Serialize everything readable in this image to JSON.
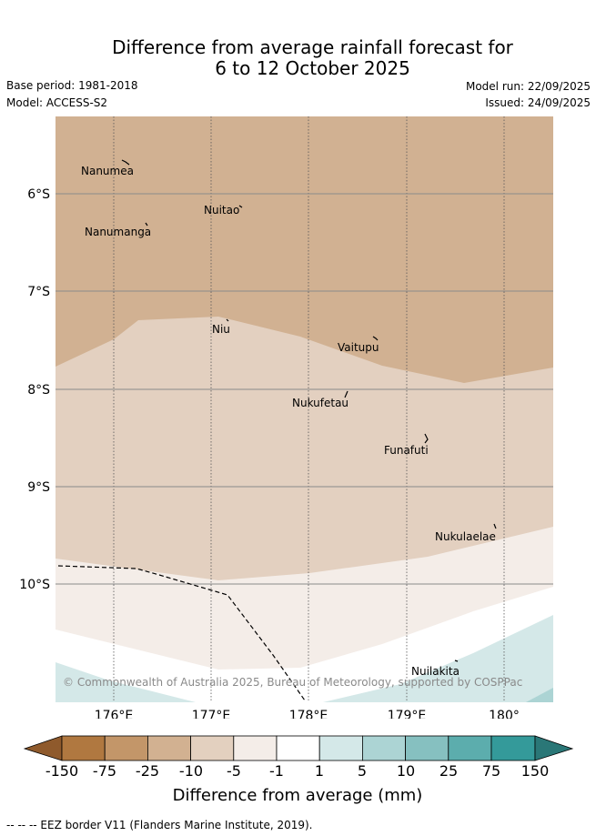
{
  "header": {
    "title_line1": "Difference from average rainfall forecast for",
    "title_line2": "6 to 12 October 2025",
    "base_period": "Base period: 1981-2018",
    "model": "Model: ACCESS-S2",
    "model_run": "Model run: 22/09/2025",
    "issued": "Issued: 24/09/2025"
  },
  "map": {
    "lat_labels": [
      "6°S",
      "7°S",
      "8°S",
      "9°S",
      "10°S"
    ],
    "lon_labels": [
      "176°E",
      "177°E",
      "178°E",
      "179°E",
      "180°"
    ],
    "places": [
      "Nanumea",
      "Nuitao",
      "Nanumanga",
      "Niu",
      "Vaitupu",
      "Nukufetau",
      "Funafuti",
      "Nukulaelae",
      "Nuilakita"
    ],
    "copyright": "© Commonwealth of Australia 2025, Bureau of Meteorology, supported by COSPPac"
  },
  "colorbar": {
    "ticks": [
      "-150",
      "-75",
      "-25",
      "-10",
      "-5",
      "-1",
      "1",
      "5",
      "10",
      "25",
      "75",
      "150"
    ],
    "colors": [
      "#8f5a2c",
      "#b07840",
      "#c39669",
      "#d2b191",
      "#e3d0bf",
      "#f4ede8",
      "#ffffff",
      "#d4e8e8",
      "#acd4d4",
      "#86c0c0",
      "#5cadad",
      "#349a9a",
      "#2a7777"
    ],
    "label": "Difference from average (mm)"
  },
  "footer": {
    "eez_text": "--  --  -- EEZ border V11 (Flanders Marine Institute, 2019)."
  }
}
